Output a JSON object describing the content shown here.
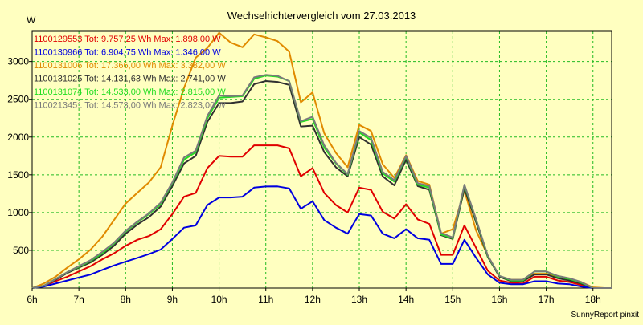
{
  "chart_data": {
    "type": "line",
    "title": "Wechselrichtervergleich vom 27.03.2013",
    "ylabel": "W",
    "footer": "SunnyReport pinxit",
    "x_ticks": [
      "6h",
      "7h",
      "8h",
      "9h",
      "10h",
      "11h",
      "12h",
      "13h",
      "14h",
      "15h",
      "16h",
      "17h",
      "18h"
    ],
    "y_ticks": [
      500,
      1000,
      1500,
      2000,
      2500,
      3000
    ],
    "xlim": [
      6,
      18.4
    ],
    "ylim": [
      0,
      3400
    ],
    "grid": true,
    "legend_position": "top-left",
    "x": [
      6.0,
      6.25,
      6.5,
      6.75,
      7.0,
      7.25,
      7.5,
      7.75,
      8.0,
      8.25,
      8.5,
      8.75,
      9.0,
      9.25,
      9.5,
      9.75,
      10.0,
      10.25,
      10.5,
      10.75,
      11.0,
      11.25,
      11.5,
      11.75,
      12.0,
      12.25,
      12.5,
      12.75,
      13.0,
      13.25,
      13.5,
      13.75,
      14.0,
      14.25,
      14.5,
      14.75,
      15.0,
      15.25,
      15.5,
      15.75,
      16.0,
      16.25,
      16.5,
      16.75,
      17.0,
      17.25,
      17.5,
      17.75,
      18.0,
      18.25,
      18.4
    ],
    "series": [
      {
        "id": "1100129553",
        "color": "#e00000",
        "legend": "1100129553 Tot: 9.757,25 Wh Max: 1.898,00 W",
        "values": [
          0,
          30,
          90,
          150,
          220,
          290,
          380,
          460,
          560,
          640,
          690,
          780,
          980,
          1210,
          1260,
          1590,
          1750,
          1740,
          1740,
          1890,
          1890,
          1890,
          1850,
          1480,
          1590,
          1260,
          1100,
          1000,
          1330,
          1300,
          1010,
          920,
          1110,
          910,
          850,
          440,
          440,
          830,
          530,
          230,
          100,
          70,
          60,
          150,
          150,
          100,
          80,
          40,
          0,
          0,
          0
        ],
        "gap": true
      },
      {
        "id": "1100130966",
        "color": "#0000e0",
        "legend": "1100130966 Tot: 6.904,75 Wh Max: 1.346,00 W",
        "values": [
          0,
          20,
          60,
          100,
          140,
          180,
          240,
          300,
          350,
          400,
          450,
          510,
          650,
          800,
          830,
          1100,
          1200,
          1200,
          1210,
          1330,
          1345,
          1346,
          1320,
          1050,
          1150,
          900,
          800,
          720,
          980,
          960,
          720,
          660,
          780,
          660,
          640,
          320,
          320,
          640,
          400,
          180,
          70,
          50,
          50,
          90,
          90,
          60,
          50,
          20,
          0,
          0,
          0
        ],
        "gap": true
      },
      {
        "id": "1100131006",
        "color": "#e08a00",
        "legend": "1100131006 Tot: 17.366,00 Wh Max: 3.382,00 W",
        "values": [
          0,
          60,
          150,
          270,
          380,
          510,
          680,
          900,
          1120,
          1260,
          1400,
          1600,
          2150,
          2650,
          3050,
          3180,
          3382,
          3250,
          3190,
          3360,
          3320,
          3270,
          3130,
          2460,
          2590,
          2050,
          1790,
          1600,
          2160,
          2080,
          1640,
          1460,
          1760,
          1420,
          1370,
          720,
          780,
          1290,
          760,
          430,
          150,
          110,
          110,
          190,
          190,
          140,
          120,
          80,
          10,
          0,
          0
        ],
        "gap": true
      },
      {
        "id": "1100131025",
        "color": "#303030",
        "legend": "1100131025 Tot: 14.131,63 Wh Max: 2.741,00 W",
        "values": [
          0,
          30,
          110,
          200,
          270,
          340,
          440,
          560,
          720,
          840,
          940,
          1080,
          1350,
          1650,
          1750,
          2200,
          2450,
          2450,
          2470,
          2700,
          2741,
          2730,
          2690,
          2140,
          2150,
          1800,
          1600,
          1480,
          2000,
          1900,
          1480,
          1360,
          1700,
          1350,
          1300,
          700,
          650,
          1320,
          870,
          410,
          150,
          90,
          90,
          180,
          180,
          130,
          100,
          60,
          0,
          0,
          0
        ],
        "gap": true
      },
      {
        "id": "1100131074",
        "color": "#22dd22",
        "legend": "1100131074 Tot: 14.533,00 Wh Max: 2.815,00 W",
        "values": [
          0,
          30,
          120,
          210,
          280,
          360,
          460,
          590,
          750,
          870,
          980,
          1110,
          1390,
          1700,
          1800,
          2250,
          2520,
          2530,
          2540,
          2770,
          2815,
          2800,
          2740,
          2200,
          2240,
          1860,
          1650,
          1500,
          2060,
          1960,
          1520,
          1410,
          1740,
          1370,
          1330,
          710,
          660,
          1360,
          900,
          420,
          160,
          100,
          100,
          220,
          220,
          150,
          120,
          70,
          0,
          0,
          0
        ],
        "gap": true
      },
      {
        "id": "1100213451",
        "color": "#7a7a7a",
        "legend": "1100213451 Tot: 14.573,00 Wh Max: 2.823,00 W",
        "values": [
          0,
          30,
          120,
          210,
          290,
          370,
          480,
          600,
          760,
          880,
          990,
          1130,
          1400,
          1730,
          1820,
          2280,
          2550,
          2540,
          2550,
          2790,
          2823,
          2810,
          2740,
          2210,
          2270,
          1890,
          1660,
          1510,
          2080,
          1990,
          1540,
          1430,
          1750,
          1390,
          1350,
          730,
          670,
          1370,
          910,
          430,
          160,
          110,
          110,
          220,
          220,
          160,
          130,
          80,
          0,
          0,
          0
        ],
        "gap": true
      }
    ]
  }
}
